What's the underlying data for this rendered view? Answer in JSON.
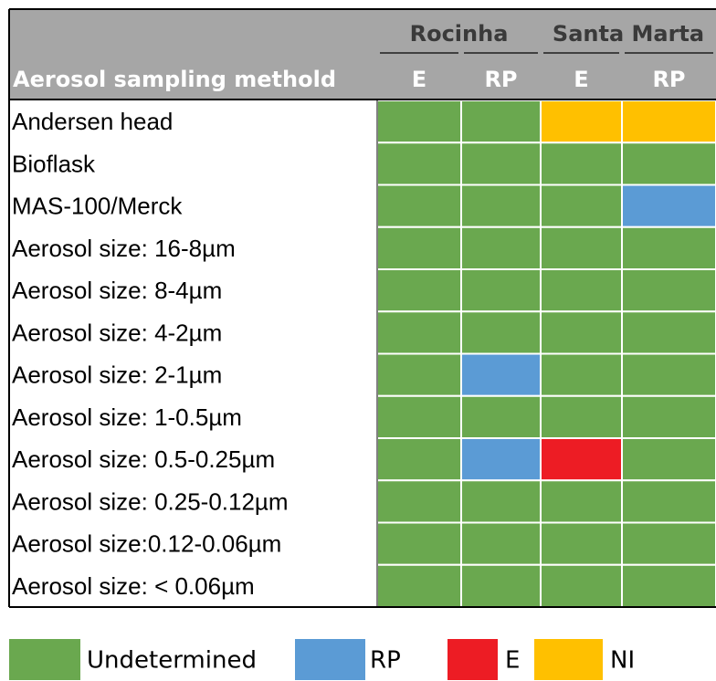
{
  "table": {
    "groups": [
      {
        "label": "Rocinha",
        "span": 2
      },
      {
        "label": "Santa Marta",
        "span": 2
      }
    ],
    "row_header": "Aerosol sampling methold",
    "columns": [
      "E",
      "RP",
      "E",
      "RP"
    ],
    "rows": [
      {
        "label": "Andersen head",
        "cells": [
          "Undetermined",
          "Undetermined",
          "NI",
          "NI"
        ]
      },
      {
        "label": "Bioflask",
        "cells": [
          "Undetermined",
          "Undetermined",
          "Undetermined",
          "Undetermined"
        ]
      },
      {
        "label": "MAS-100/Merck",
        "cells": [
          "Undetermined",
          "Undetermined",
          "Undetermined",
          "RP"
        ]
      },
      {
        "label": "Aerosol size: 16-8µm",
        "cells": [
          "Undetermined",
          "Undetermined",
          "Undetermined",
          "Undetermined"
        ]
      },
      {
        "label": "Aerosol size: 8-4µm",
        "cells": [
          "Undetermined",
          "Undetermined",
          "Undetermined",
          "Undetermined"
        ]
      },
      {
        "label": "Aerosol size: 4-2µm",
        "cells": [
          "Undetermined",
          "Undetermined",
          "Undetermined",
          "Undetermined"
        ]
      },
      {
        "label": "Aerosol size: 2-1µm",
        "cells": [
          "Undetermined",
          "RP",
          "Undetermined",
          "Undetermined"
        ]
      },
      {
        "label": "Aerosol size: 1-0.5µm",
        "cells": [
          "Undetermined",
          "Undetermined",
          "Undetermined",
          "Undetermined"
        ]
      },
      {
        "label": "Aerosol size: 0.5-0.25µm",
        "cells": [
          "Undetermined",
          "RP",
          "E",
          "Undetermined"
        ]
      },
      {
        "label": "Aerosol size: 0.25-0.12µm",
        "cells": [
          "Undetermined",
          "Undetermined",
          "Undetermined",
          "Undetermined"
        ]
      },
      {
        "label": "Aerosol size:0.12-0.06µm",
        "cells": [
          "Undetermined",
          "Undetermined",
          "Undetermined",
          "Undetermined"
        ]
      },
      {
        "label": "Aerosol size: < 0.06µm",
        "cells": [
          "Undetermined",
          "Undetermined",
          "Undetermined",
          "Undetermined"
        ]
      }
    ]
  },
  "legend": [
    {
      "label": "Undetermined",
      "color": "#6aa84f"
    },
    {
      "label": "RP",
      "color": "#5b9bd5"
    },
    {
      "label": "E",
      "color": "#ed1c24"
    },
    {
      "label": "NI",
      "color": "#ffc000"
    }
  ]
}
